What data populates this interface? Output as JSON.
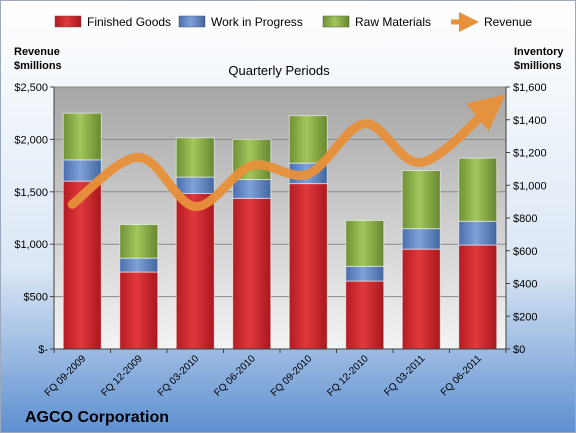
{
  "chart_data": {
    "type": "bar",
    "title": "Quarterly Periods",
    "company": "AGCO Corporation",
    "left_axis_label": [
      "Revenue",
      "$millions"
    ],
    "right_axis_label": [
      "Inventory",
      "$millions"
    ],
    "categories": [
      "FQ 09-2009",
      "FQ 12-2009",
      "FQ 03-2010",
      "FQ 06-2010",
      "FQ 09-2010",
      "FQ 12-2010",
      "FQ 03-2011",
      "FQ 06-2011"
    ],
    "left_axis": {
      "min": 0,
      "max": 2500,
      "ticks": [
        0,
        500,
        1000,
        1500,
        2000,
        2500
      ],
      "tick_labels": [
        "$-",
        "$500",
        "$1,000",
        "$1,500",
        "$2,000",
        "$2,500"
      ]
    },
    "right_axis": {
      "min": 0,
      "max": 1600,
      "ticks": [
        0,
        200,
        400,
        600,
        800,
        1000,
        1200,
        1400,
        1600
      ],
      "tick_labels": [
        "$0",
        "$200",
        "$400",
        "$600",
        "$800",
        "$1,000",
        "$1,200",
        "$1,400",
        "$1,600"
      ]
    },
    "series": [
      {
        "name": "Finished Goods",
        "type": "bar",
        "axis": "right",
        "color": "#d9262c",
        "values": [
          1025,
          470,
          950,
          920,
          1010,
          415,
          610,
          635
        ]
      },
      {
        "name": "Work in Progress",
        "type": "bar",
        "axis": "right",
        "color": "#5b84c8",
        "values": [
          130,
          85,
          100,
          115,
          125,
          90,
          125,
          145
        ]
      },
      {
        "name": "Raw Materials",
        "type": "bar",
        "axis": "right",
        "color": "#8db34a",
        "values": [
          285,
          205,
          240,
          245,
          290,
          280,
          355,
          385
        ]
      },
      {
        "name": "Revenue",
        "type": "line",
        "axis": "left",
        "color": "#e8913a",
        "values": [
          1380,
          1830,
          1360,
          1750,
          1670,
          2150,
          1780,
          2330
        ]
      }
    ],
    "legend_position": "top",
    "grid": true
  }
}
